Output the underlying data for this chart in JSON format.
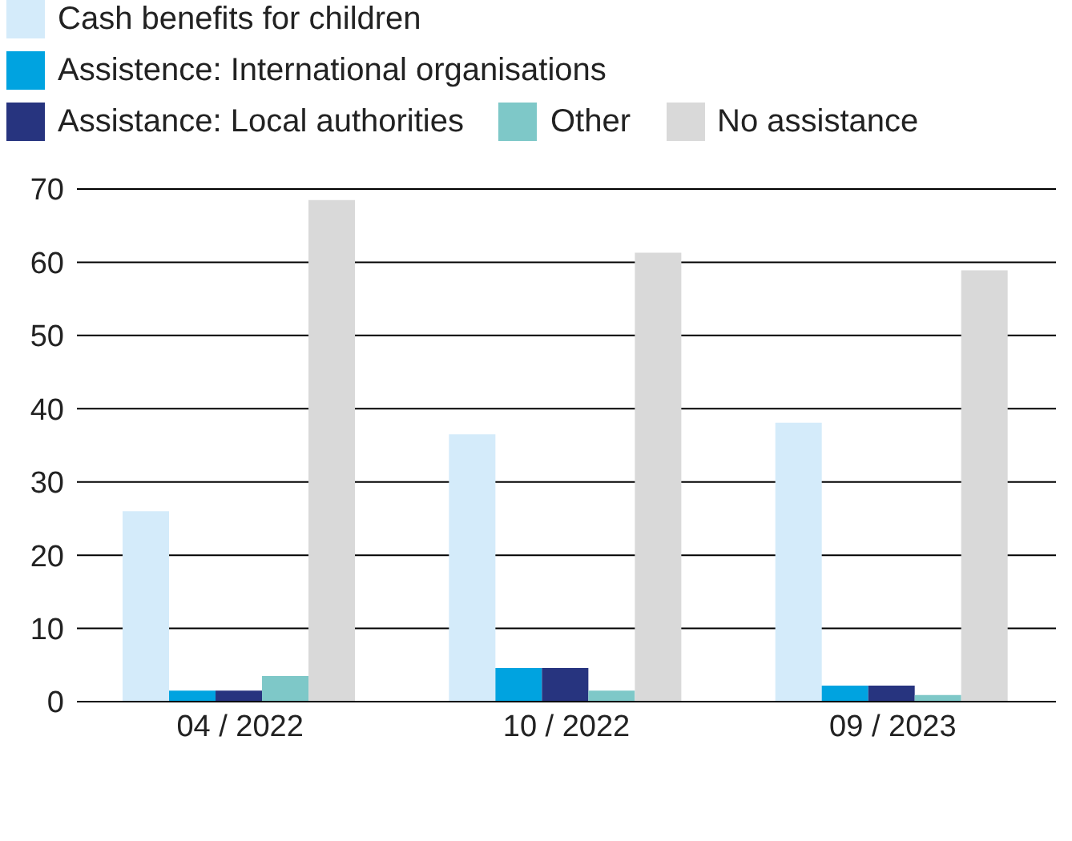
{
  "chart_data": {
    "type": "bar",
    "categories": [
      "04 / 2022",
      "10 / 2022",
      "09 / 2023"
    ],
    "series": [
      {
        "name": "Cash benefits for children",
        "color": "#d4ebfa",
        "values": [
          26.0,
          36.5,
          38.1
        ]
      },
      {
        "name": "Assistence: International organisations",
        "color": "#00a3e0",
        "values": [
          1.5,
          4.6,
          2.2
        ]
      },
      {
        "name": "Assistance: Local authorities",
        "color": "#27347f",
        "values": [
          1.5,
          4.6,
          2.2
        ]
      },
      {
        "name": "Other",
        "color": "#7ec8c8",
        "values": [
          3.5,
          1.5,
          0.9
        ]
      },
      {
        "name": "No assistance",
        "color": "#d9d9d9",
        "values": [
          68.5,
          61.3,
          58.9
        ]
      }
    ],
    "ylim": [
      0,
      70
    ],
    "yticks": [
      0,
      10,
      20,
      30,
      40,
      50,
      60,
      70
    ],
    "grid": "y",
    "legend": "top left"
  }
}
